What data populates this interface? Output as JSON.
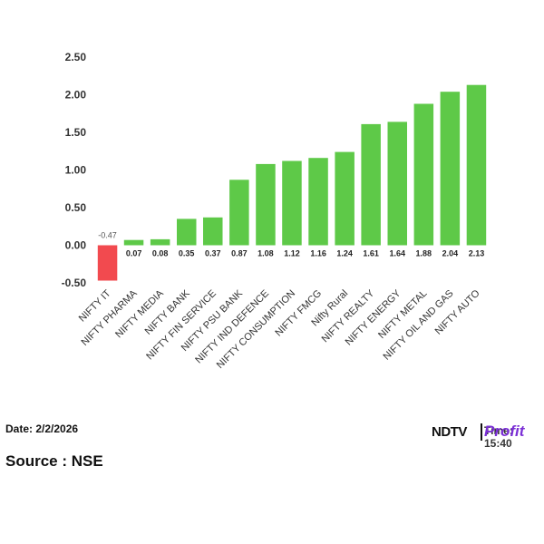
{
  "chart_data": {
    "type": "bar",
    "categories": [
      "NIFTY IT",
      "NIFTY PHARMA",
      "NIFTY MEDIA",
      "NIFTY BANK",
      "NIFTY FIN SERVICE",
      "NIFTY PSU BANK",
      "NIFTY IND DEFENCE",
      "NIFTY CONSUMPTION",
      "NIFTY FMCG",
      "Nifty Rural",
      "NIFTY REALTY",
      "NIFTY ENERGY",
      "NIFTY METAL",
      "NIFTY OIL AND GAS",
      "NIFTY AUTO"
    ],
    "values": [
      -0.47,
      0.07,
      0.08,
      0.35,
      0.37,
      0.87,
      1.08,
      1.12,
      1.16,
      1.24,
      1.61,
      1.64,
      1.88,
      2.04,
      2.13
    ],
    "data_labels": [
      "-0.47",
      "0.07",
      "0.08",
      "0.35",
      "0.37",
      "0.87",
      "1.08",
      "1.12",
      "1.16",
      "1.24",
      "1.61",
      "1.64",
      "1.88",
      "2.04",
      "2.13"
    ],
    "yticks": [
      "-0.50",
      "0.00",
      "0.50",
      "1.00",
      "1.50",
      "2.00",
      "2.50"
    ],
    "ylim": [
      -0.5,
      2.5
    ],
    "colors": {
      "positive": "#5ec948",
      "negative": "#f24a4f"
    },
    "grid": false,
    "title": "",
    "xlabel": "",
    "ylabel": ""
  },
  "footer": {
    "date": "Date: 2/2/2026",
    "time": "Time: 15:40",
    "source": "Source : NSE",
    "logo_primary": "NDTV",
    "logo_secondary": "Profit"
  }
}
